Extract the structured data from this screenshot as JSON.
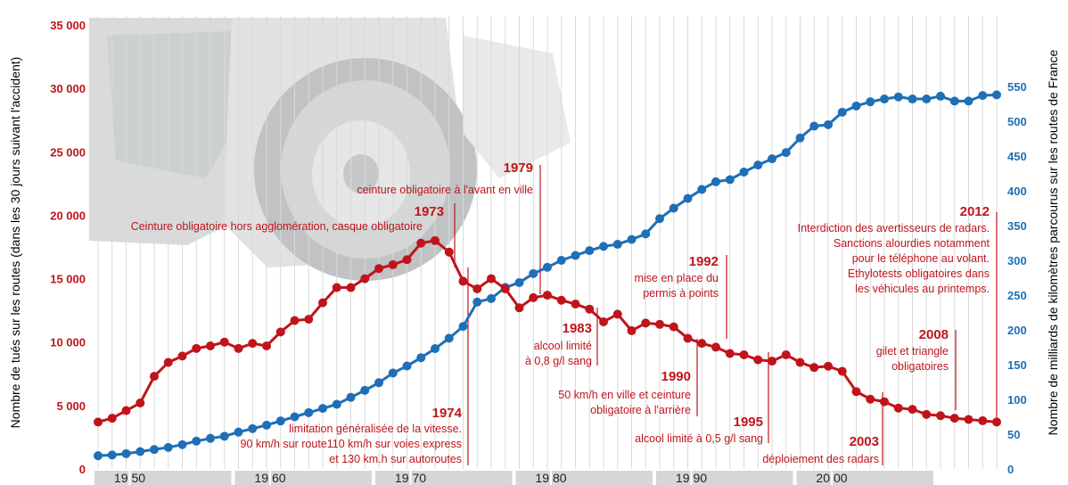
{
  "colors": {
    "deaths": "#c0141b",
    "distance": "#1f6fb6",
    "left_axis_text": "#c0141b",
    "right_axis_text": "#1f6fb6",
    "annotation": "#c0141b",
    "grid": "#d9d9d9",
    "decade_band": "#d6d6d6"
  },
  "chart_data": {
    "type": "line",
    "x": [
      1948,
      1949,
      1950,
      1951,
      1952,
      1953,
      1954,
      1955,
      1956,
      1957,
      1958,
      1959,
      1960,
      1961,
      1962,
      1963,
      1964,
      1965,
      1966,
      1967,
      1968,
      1969,
      1970,
      1971,
      1972,
      1973,
      1974,
      1975,
      1976,
      1977,
      1978,
      1979,
      1980,
      1981,
      1982,
      1983,
      1984,
      1985,
      1986,
      1987,
      1988,
      1989,
      1990,
      1991,
      1992,
      1993,
      1994,
      1995,
      1996,
      1997,
      1998,
      1999,
      2000,
      2001,
      2002,
      2003,
      2004,
      2005,
      2006,
      2007,
      2008,
      2009,
      2010,
      2011,
      2012
    ],
    "series": [
      {
        "axis": "left",
        "values": [
          3700,
          4000,
          4600,
          5200,
          7300,
          8400,
          8900,
          9500,
          9700,
          10000,
          9500,
          9900,
          9700,
          10800,
          11700,
          11800,
          13100,
          14300,
          14300,
          15000,
          15800,
          16100,
          16500,
          17800,
          18000,
          17100,
          14800,
          14200,
          15000,
          14200,
          12700,
          13500,
          13700,
          13300,
          13000,
          12600,
          11600,
          12200,
          10900,
          11500,
          11400,
          11200,
          10300,
          9900,
          9600,
          9100,
          9000,
          8600,
          8500,
          9000,
          8400,
          8000,
          8100,
          7700,
          6100,
          5500,
          5300,
          4800,
          4700,
          4300,
          4200,
          4000,
          3900,
          3800,
          3700
        ]
      },
      {
        "axis": "right",
        "values": [
          19,
          20,
          22,
          25,
          28,
          31,
          35,
          40,
          44,
          47,
          53,
          58,
          63,
          69,
          75,
          81,
          87,
          93,
          103,
          113,
          124,
          138,
          148,
          160,
          173,
          188,
          205,
          240,
          245,
          261,
          268,
          281,
          290,
          300,
          307,
          314,
          320,
          323,
          330,
          338,
          360,
          375,
          389,
          402,
          413,
          416,
          427,
          437,
          446,
          455,
          476,
          493,
          495,
          513,
          522,
          528,
          532,
          535,
          532,
          532,
          536,
          529,
          529,
          537,
          538
        ]
      }
    ],
    "y_left": {
      "label": "Nombre de tués sur les routes (dans les 30 jours suivant l'accident)",
      "min": 0,
      "max": 35000,
      "ticks": [
        "0",
        "5 000",
        "10 000",
        "15 000",
        "20 000",
        "25 000",
        "30 000",
        "35 000"
      ]
    },
    "y_right": {
      "label": "Nombre de milliards de kilomètres parcourus sur les routes de France",
      "min": 0,
      "max": 600,
      "ticks": [
        "0",
        "50",
        "100",
        "150",
        "200",
        "250",
        "300",
        "350",
        "400",
        "450",
        "500",
        "550"
      ]
    },
    "x_decades": [
      "19|50",
      "19|60",
      "19|70",
      "19|80",
      "19|90",
      "20|00"
    ],
    "grid": true
  },
  "annotations": [
    {
      "year": "1973",
      "lines": [
        "Ceinture obligatoire hors agglomération, casque obligatoire"
      ]
    },
    {
      "year": "1974",
      "lines": [
        "limitation généralisée de la vitesse.",
        "90 km/h sur route110 km/h sur voies express",
        "et 130 km.h sur autoroutes"
      ]
    },
    {
      "year": "1979",
      "lines": [
        "ceinture obligatoire à l'avant en ville"
      ]
    },
    {
      "year": "1983",
      "lines": [
        "alcool limité",
        "à 0,8 g/l sang"
      ]
    },
    {
      "year": "1990",
      "lines": [
        "50 km/h en ville et ceinture",
        "obligatoire à l'arrière"
      ]
    },
    {
      "year": "1992",
      "lines": [
        "mise en place du",
        "permis à points"
      ]
    },
    {
      "year": "1995",
      "lines": [
        "alcool limité à 0,5 g/l sang"
      ]
    },
    {
      "year": "2003",
      "lines": [
        "déploiement des radars"
      ]
    },
    {
      "year": "2008",
      "lines": [
        "gilet et triangle",
        "obligatoires"
      ]
    },
    {
      "year": "2012",
      "lines": [
        "Interdiction des avertisseurs de radars.",
        "Sanctions alourdies notamment",
        "pour le téléphone au volant.",
        "Ethylotests obligatoires dans",
        "les véhicules au printemps."
      ]
    }
  ]
}
